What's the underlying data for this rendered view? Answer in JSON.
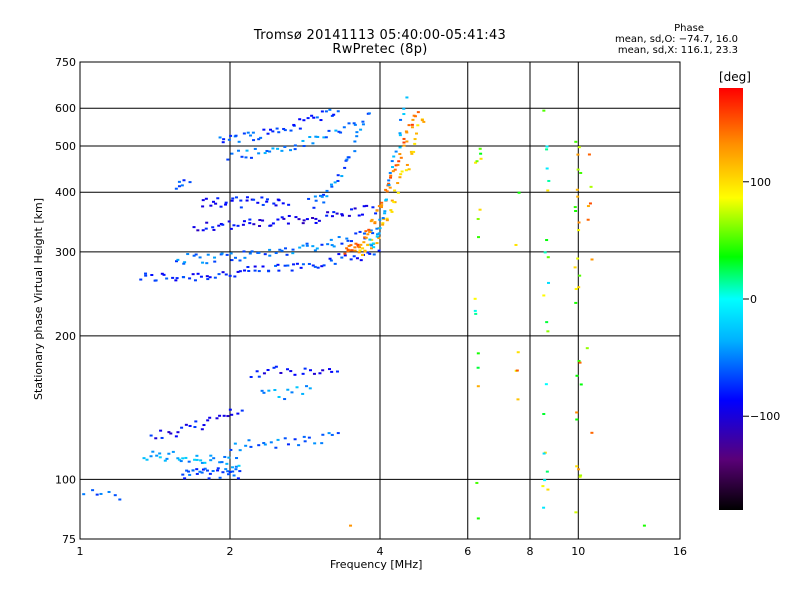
{
  "header": {
    "title_line1": "Tromsø 20141113 05:40:00-05:41:43",
    "title_line2": "RwPretec (8p)"
  },
  "phase_info": {
    "heading": "Phase",
    "o_line": "mean, sd,O: −74.7, 16.0",
    "x_line": "mean, sd,X: 116.1, 23.3"
  },
  "colorbar": {
    "unit": "[deg]",
    "ticks": [
      {
        "value": 100,
        "label": "100"
      },
      {
        "value": 0,
        "label": "0"
      },
      {
        "value": -100,
        "label": "−100"
      }
    ],
    "range": [
      -180,
      180
    ]
  },
  "chart_data": {
    "type": "scatter",
    "title": "Tromsø 20141113 05:40:00-05:41:43",
    "subtitle": "RwPretec (8p)",
    "xlabel": "Frequency [MHz]",
    "ylabel": "Stationary phase Virtual Height [km]",
    "x_scale": "log",
    "y_scale": "log",
    "xlim": [
      1,
      16
    ],
    "ylim": [
      75,
      750
    ],
    "x_ticks": [
      1,
      2,
      4,
      6,
      8,
      10,
      16
    ],
    "x_tick_labels": [
      "1",
      "2",
      "4",
      "6",
      "8",
      "10",
      "16"
    ],
    "y_ticks": [
      75,
      100,
      200,
      300,
      400,
      500,
      600,
      750
    ],
    "y_tick_labels": [
      "75",
      "100",
      "200",
      "300",
      "400",
      "500",
      "600",
      "750"
    ],
    "grid": true,
    "color_by": "phase [deg]",
    "traces": [
      {
        "f_start": 1.32,
        "f_end": 3.95,
        "h_start": 265,
        "h_end": 300,
        "phase": -80,
        "count": 70
      },
      {
        "f_start": 1.55,
        "f_end": 3.95,
        "h_start": 290,
        "h_end": 330,
        "phase": -60,
        "count": 60
      },
      {
        "f_start": 1.7,
        "f_end": 3.9,
        "h_start": 340,
        "h_end": 370,
        "phase": -95,
        "count": 55
      },
      {
        "f_start": 1.75,
        "f_end": 2.6,
        "h_start": 380,
        "h_end": 385,
        "phase": -90,
        "count": 30
      },
      {
        "f_start": 1.55,
        "f_end": 1.65,
        "h_start": 415,
        "h_end": 415,
        "phase": -70,
        "count": 6
      },
      {
        "f_start": 1.9,
        "f_end": 3.3,
        "h_start": 520,
        "h_end": 600,
        "phase": -70,
        "count": 40
      },
      {
        "f_start": 2.0,
        "f_end": 3.6,
        "h_start": 480,
        "h_end": 560,
        "phase": -55,
        "count": 35
      },
      {
        "f_start": 2.9,
        "f_end": 3.8,
        "h_start": 380,
        "h_end": 600,
        "phase": -60,
        "count": 30
      },
      {
        "f_start": 3.4,
        "f_end": 4.75,
        "h_start": 300,
        "h_end": 600,
        "phase": 140,
        "count": 60
      },
      {
        "f_start": 3.6,
        "f_end": 4.9,
        "h_start": 300,
        "h_end": 580,
        "phase": 110,
        "count": 45
      },
      {
        "f_start": 3.8,
        "f_end": 4.5,
        "h_start": 310,
        "h_end": 620,
        "phase": -40,
        "count": 30
      },
      {
        "f_start": 1.6,
        "f_end": 2.1,
        "h_start": 103,
        "h_end": 103,
        "phase": -70,
        "count": 30
      },
      {
        "f_start": 1.35,
        "f_end": 2.1,
        "h_start": 112,
        "h_end": 108,
        "phase": -40,
        "count": 35
      },
      {
        "f_start": 2.0,
        "f_end": 3.3,
        "h_start": 118,
        "h_end": 123,
        "phase": -60,
        "count": 25
      },
      {
        "f_start": 1.4,
        "f_end": 2.1,
        "h_start": 125,
        "h_end": 142,
        "phase": -90,
        "count": 25
      },
      {
        "f_start": 2.2,
        "f_end": 3.3,
        "h_start": 168,
        "h_end": 170,
        "phase": -90,
        "count": 20
      },
      {
        "f_start": 2.3,
        "f_end": 2.9,
        "h_start": 150,
        "h_end": 155,
        "phase": -45,
        "count": 12
      },
      {
        "f_start": 1.0,
        "f_end": 1.2,
        "h_start": 95,
        "h_end": 92,
        "phase": -65,
        "count": 8
      }
    ],
    "vertical_scatter": [
      {
        "f": 6.3,
        "h_min": 80,
        "h_max": 600,
        "phase": 60,
        "count": 16
      },
      {
        "f": 8.6,
        "h_min": 80,
        "h_max": 620,
        "phase": 40,
        "count": 22
      },
      {
        "f": 10.0,
        "h_min": 85,
        "h_max": 620,
        "phase": 85,
        "count": 28
      },
      {
        "f": 10.5,
        "h_min": 120,
        "h_max": 600,
        "phase": 110,
        "count": 8
      },
      {
        "f": 7.6,
        "h_min": 140,
        "h_max": 400,
        "phase": 95,
        "count": 6
      },
      {
        "f": 13.5,
        "h_min": 80,
        "h_max": 80,
        "phase": 100,
        "count": 1
      },
      {
        "f": 3.5,
        "h_min": 80,
        "h_max": 80,
        "phase": 110,
        "count": 1
      }
    ]
  }
}
